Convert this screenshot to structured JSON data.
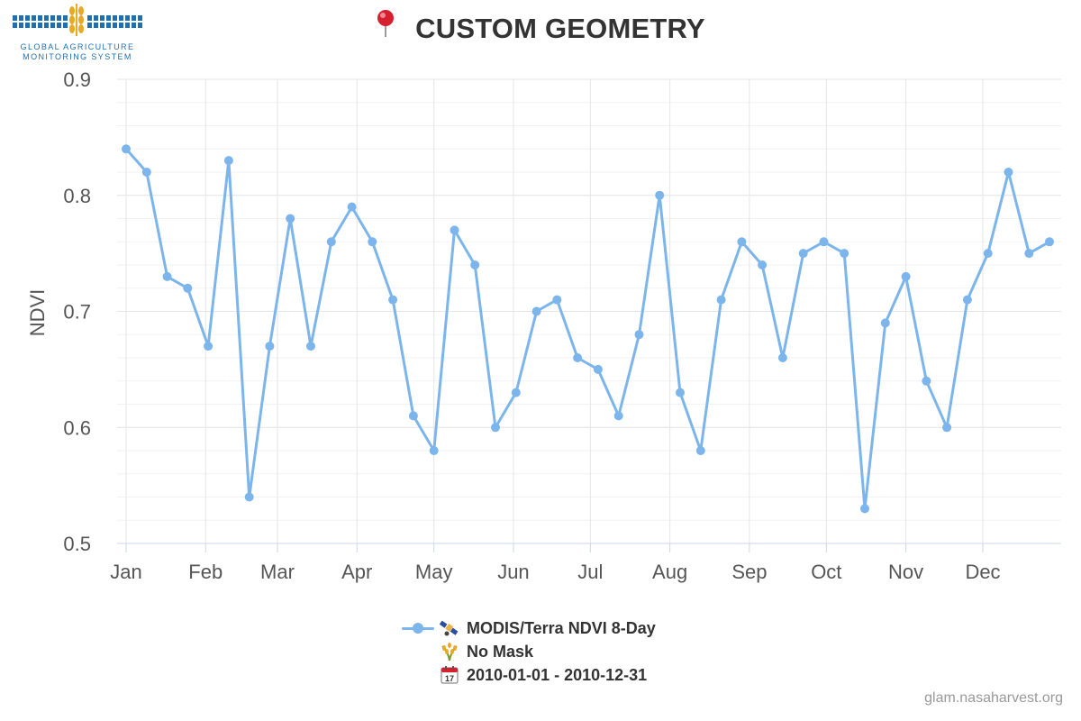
{
  "header": {
    "logo_line1": "GLOBAL AGRICULTURE",
    "logo_line2": "MONITORING SYSTEM",
    "title": "CUSTOM GEOMETRY",
    "title_icon": "map-pin-icon"
  },
  "colors": {
    "series": "#7cb5ec",
    "grid": "#e6e6e6",
    "axis_text": "#555555",
    "title": "#333333",
    "logo_blue": "#1f6fb2",
    "logo_gold": "#e9a925"
  },
  "chart_data": {
    "type": "line",
    "title": "CUSTOM GEOMETRY",
    "ylabel": "NDVI",
    "xlabel": "",
    "ylim": [
      0.5,
      0.9
    ],
    "yticks": [
      0.5,
      0.6,
      0.7,
      0.8,
      0.9
    ],
    "ytick_labels": [
      "0.5",
      "0.6",
      "0.7",
      "0.8",
      "0.9"
    ],
    "xlim": [
      "2010-01-01",
      "2010-12-31"
    ],
    "xticks": [
      "2010-01-01",
      "2010-02-01",
      "2010-03-01",
      "2010-04-01",
      "2010-05-01",
      "2010-06-01",
      "2010-07-01",
      "2010-08-01",
      "2010-09-01",
      "2010-10-01",
      "2010-11-01",
      "2010-12-01"
    ],
    "xtick_labels": [
      "Jan",
      "Feb",
      "Mar",
      "Apr",
      "May",
      "Jun",
      "Jul",
      "Aug",
      "Sep",
      "Oct",
      "Nov",
      "Dec"
    ],
    "grid": true,
    "legend_position": "bottom-center",
    "series": [
      {
        "name": "MODIS/Terra NDVI 8-Day",
        "color": "#7cb5ec",
        "x": [
          "2010-01-01",
          "2010-01-09",
          "2010-01-17",
          "2010-01-25",
          "2010-02-02",
          "2010-02-10",
          "2010-02-18",
          "2010-02-26",
          "2010-03-06",
          "2010-03-14",
          "2010-03-22",
          "2010-03-30",
          "2010-04-07",
          "2010-04-15",
          "2010-04-23",
          "2010-05-01",
          "2010-05-09",
          "2010-05-17",
          "2010-05-25",
          "2010-06-02",
          "2010-06-10",
          "2010-06-18",
          "2010-06-26",
          "2010-07-04",
          "2010-07-12",
          "2010-07-20",
          "2010-07-28",
          "2010-08-05",
          "2010-08-13",
          "2010-08-21",
          "2010-08-29",
          "2010-09-06",
          "2010-09-14",
          "2010-09-22",
          "2010-09-30",
          "2010-10-08",
          "2010-10-16",
          "2010-10-24",
          "2010-11-01",
          "2010-11-09",
          "2010-11-17",
          "2010-11-25",
          "2010-12-03",
          "2010-12-11",
          "2010-12-19",
          "2010-12-27"
        ],
        "y": [
          0.84,
          0.82,
          0.73,
          0.72,
          0.67,
          0.83,
          0.54,
          0.67,
          0.78,
          0.67,
          0.76,
          0.79,
          0.76,
          0.71,
          0.61,
          0.58,
          0.77,
          0.74,
          0.6,
          0.63,
          0.7,
          0.71,
          0.66,
          0.65,
          0.61,
          0.68,
          0.8,
          0.63,
          0.58,
          0.71,
          0.76,
          0.74,
          0.66,
          0.75,
          0.76,
          0.75,
          0.53,
          0.69,
          0.73,
          0.64,
          0.6,
          0.71,
          0.75,
          0.82,
          0.75,
          0.76
        ]
      }
    ]
  },
  "legend": {
    "series_label": "MODIS/Terra NDVI 8-Day",
    "series_icon": "satellite-icon",
    "mask_label": "No Mask",
    "mask_icon": "crop-icon",
    "date_label": "2010-01-01 - 2010-12-31",
    "date_icon": "calendar-icon"
  },
  "credit": "glam.nasaharvest.org"
}
